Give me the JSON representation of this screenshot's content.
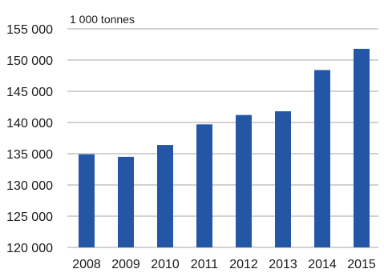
{
  "chart_data": {
    "type": "bar",
    "unit_label": "1 000 tonnes",
    "categories": [
      "2008",
      "2009",
      "2010",
      "2011",
      "2012",
      "2013",
      "2014",
      "2015"
    ],
    "values": [
      134900,
      134500,
      136400,
      139700,
      141200,
      141800,
      148400,
      151800
    ],
    "ylim": [
      120000,
      155000
    ],
    "y_ticks": [
      120000,
      125000,
      130000,
      135000,
      140000,
      145000,
      150000,
      155000
    ],
    "y_tick_labels": [
      "120 000",
      "125 000",
      "130 000",
      "135 000",
      "140 000",
      "145 000",
      "150 000",
      "155 000"
    ],
    "bar_color": "#2456a6",
    "grid": true,
    "grid_color": "#a6a6a6",
    "title": "",
    "xlabel": "",
    "ylabel": ""
  }
}
